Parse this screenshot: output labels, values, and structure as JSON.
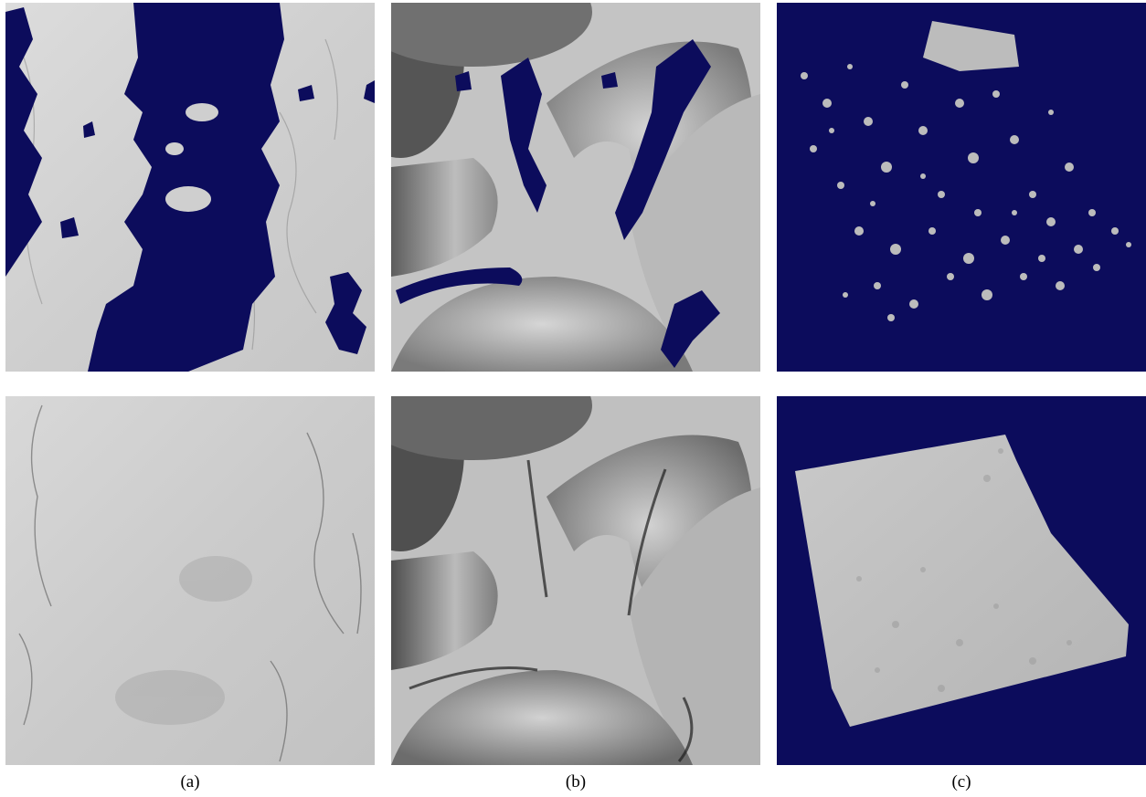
{
  "figure": {
    "captions": [
      "(a)",
      "(b)",
      "(c)"
    ],
    "colors": {
      "highlight": "#0c0c5c",
      "surface": "#cfcfcf",
      "background": "#ffffff"
    }
  }
}
